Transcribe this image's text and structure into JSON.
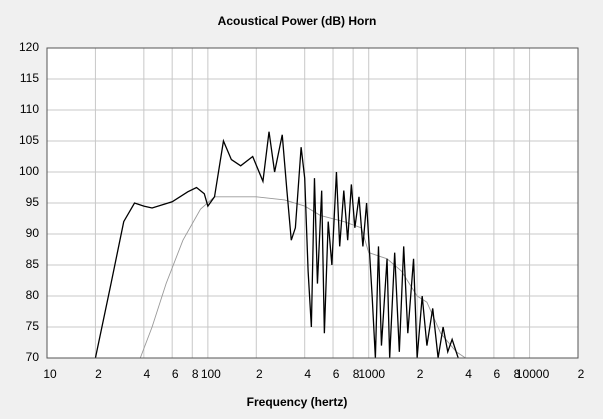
{
  "chart_data": {
    "type": "line",
    "title": "Acoustical Power (dB)    Horn",
    "x_label": "Frequency (hertz)",
    "log_x": true,
    "grid": true,
    "xlim": [
      10,
      20000
    ],
    "ylim": [
      70,
      120
    ],
    "xticks": [
      {
        "value": 10,
        "label": "10"
      },
      {
        "value": 20,
        "label": "2"
      },
      {
        "value": 40,
        "label": "4"
      },
      {
        "value": 60,
        "label": "6"
      },
      {
        "value": 80,
        "label": "8"
      },
      {
        "value": 100,
        "label": "100"
      },
      {
        "value": 200,
        "label": "2"
      },
      {
        "value": 400,
        "label": "4"
      },
      {
        "value": 600,
        "label": "6"
      },
      {
        "value": 800,
        "label": "8"
      },
      {
        "value": 1000,
        "label": "1000"
      },
      {
        "value": 2000,
        "label": "2"
      },
      {
        "value": 4000,
        "label": "4"
      },
      {
        "value": 6000,
        "label": "6"
      },
      {
        "value": 8000,
        "label": "8"
      },
      {
        "value": 10000,
        "label": "10000"
      },
      {
        "value": 20000,
        "label": "2"
      }
    ],
    "yticks": [
      70,
      75,
      80,
      85,
      90,
      95,
      100,
      105,
      110,
      115,
      120
    ],
    "series": [
      {
        "color": "#000000",
        "x": [
          20,
          25,
          30,
          35,
          40,
          45,
          60,
          75,
          85,
          95,
          100,
          110,
          125,
          140,
          160,
          190,
          220,
          240,
          260,
          290,
          310,
          330,
          350,
          380,
          400,
          420,
          440,
          460,
          480,
          510,
          530,
          560,
          590,
          630,
          660,
          700,
          740,
          780,
          820,
          870,
          920,
          970,
          1050,
          1100,
          1150,
          1200,
          1300,
          1350,
          1450,
          1550,
          1650,
          1750,
          1900,
          2000,
          2150,
          2300,
          2500,
          2700,
          2900,
          3100,
          3300,
          3600
        ],
        "values": [
          70,
          82,
          92,
          95,
          94.5,
          94.2,
          95.2,
          96.8,
          97.5,
          96.5,
          94.5,
          96,
          105,
          102,
          101,
          102.5,
          98.5,
          106.5,
          100,
          106,
          97,
          89,
          91,
          104,
          99,
          84,
          75,
          99,
          82,
          97,
          74,
          92,
          85,
          100,
          88,
          97,
          89,
          98,
          91,
          96,
          88,
          95,
          80,
          70,
          88,
          72,
          86,
          70,
          87,
          71,
          88,
          74,
          86,
          70,
          80,
          72,
          78,
          70,
          75,
          71,
          73,
          70
        ]
      },
      {
        "color": "#999999",
        "x": [
          38,
          45,
          55,
          70,
          90,
          110,
          150,
          200,
          300,
          400,
          500,
          700,
          900,
          1000,
          1300,
          1600,
          2000,
          2300,
          2800,
          3500,
          4000
        ],
        "values": [
          70,
          75,
          82,
          89,
          94,
          96,
          96,
          96,
          95.5,
          94.5,
          93,
          92,
          91,
          87,
          86,
          84,
          80,
          79,
          74,
          71,
          70
        ]
      }
    ]
  }
}
